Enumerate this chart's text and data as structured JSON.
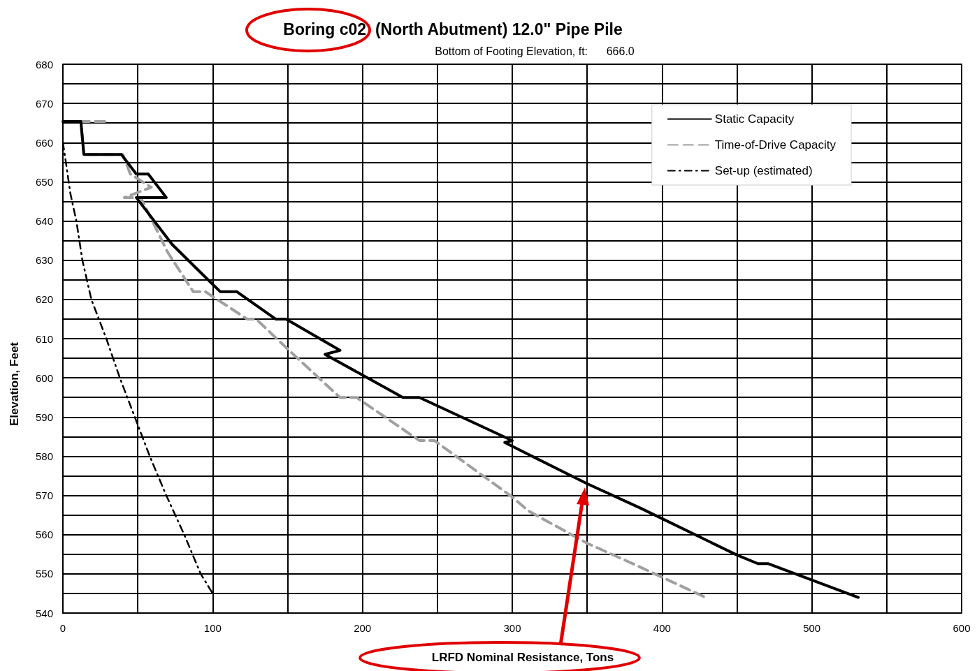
{
  "chart_data": {
    "type": "line",
    "title": "Boring c02  (North Abutment) 12.0\" Pipe Pile",
    "subtitle": "Bottom of Footing Elevation, ft:      666.0",
    "xlabel": "LRFD Nominal Resistance, Tons",
    "ylabel": "Elevation, Feet",
    "xlim": [
      0,
      600
    ],
    "ylim": [
      540,
      680
    ],
    "xticks": [
      0,
      {
        "value": 50,
        "label": null
      },
      100,
      {
        "value": 150,
        "label": null
      },
      200,
      {
        "value": 250,
        "label": null
      },
      300,
      {
        "value": 350,
        "label": null
      },
      400,
      {
        "value": 450,
        "label": null
      },
      500,
      {
        "value": 550,
        "label": null
      },
      600
    ],
    "yticks": [
      540,
      {
        "value": 545,
        "label": null
      },
      550,
      {
        "value": 555,
        "label": null
      },
      560,
      {
        "value": 565,
        "label": null
      },
      570,
      {
        "value": 575,
        "label": null
      },
      580,
      {
        "value": 585,
        "label": null
      },
      590,
      {
        "value": 595,
        "label": null
      },
      600,
      {
        "value": 605,
        "label": null
      },
      610,
      {
        "value": 615,
        "label": null
      },
      620,
      {
        "value": 625,
        "label": null
      },
      630,
      {
        "value": 635,
        "label": null
      },
      640,
      {
        "value": 645,
        "label": null
      },
      650,
      {
        "value": 655,
        "label": null
      },
      660,
      {
        "value": 665,
        "label": null
      },
      670,
      {
        "value": 675,
        "label": null
      },
      680
    ],
    "grid": true,
    "legend": "top right",
    "marker": "none",
    "series": [
      {
        "name": "Static Capacity",
        "color": "#000000",
        "line_style": "solid",
        "x": [
          0,
          12,
          14,
          39,
          49,
          57,
          69,
          49,
          73,
          98,
          105,
          116,
          142,
          149,
          185,
          175,
          227,
          238,
          300,
          295,
          350,
          386,
          450,
          464,
          471,
          531
        ],
        "values": [
          665.4,
          665.4,
          657,
          657,
          652,
          652,
          646,
          646,
          634,
          624.6,
          622,
          622,
          615,
          615,
          607,
          606,
          595,
          595,
          584,
          583.5,
          573,
          566.7,
          554.8,
          552.6,
          552.6,
          544
        ]
      },
      {
        "name": "Time-of-Drive Capacity",
        "color": "#a0a0a0",
        "line_style": "dashed",
        "x": [
          28,
          12,
          14,
          40,
          45,
          59,
          41,
          52,
          70,
          87,
          95,
          123,
          129,
          151,
          185,
          196,
          238,
          248,
          300,
          311,
          350,
          381,
          429
        ],
        "values": [
          665.4,
          665.4,
          657,
          657,
          652,
          648.6,
          646,
          646,
          632,
          622,
          622,
          615,
          615,
          607,
          595,
          595,
          584,
          584,
          569.6,
          566,
          557.8,
          552.5,
          544
        ]
      },
      {
        "name": "Set-up (estimated)",
        "color": "#000000",
        "line_style": "dashed",
        "x": [
          0,
          2,
          5,
          9,
          13,
          19,
          29,
          38,
          48,
          58,
          69,
          81,
          92,
          100
        ],
        "values": [
          660,
          655,
          647,
          640,
          630,
          620,
          610,
          600,
          590,
          580,
          570,
          560,
          550,
          545
        ]
      }
    ]
  }
}
